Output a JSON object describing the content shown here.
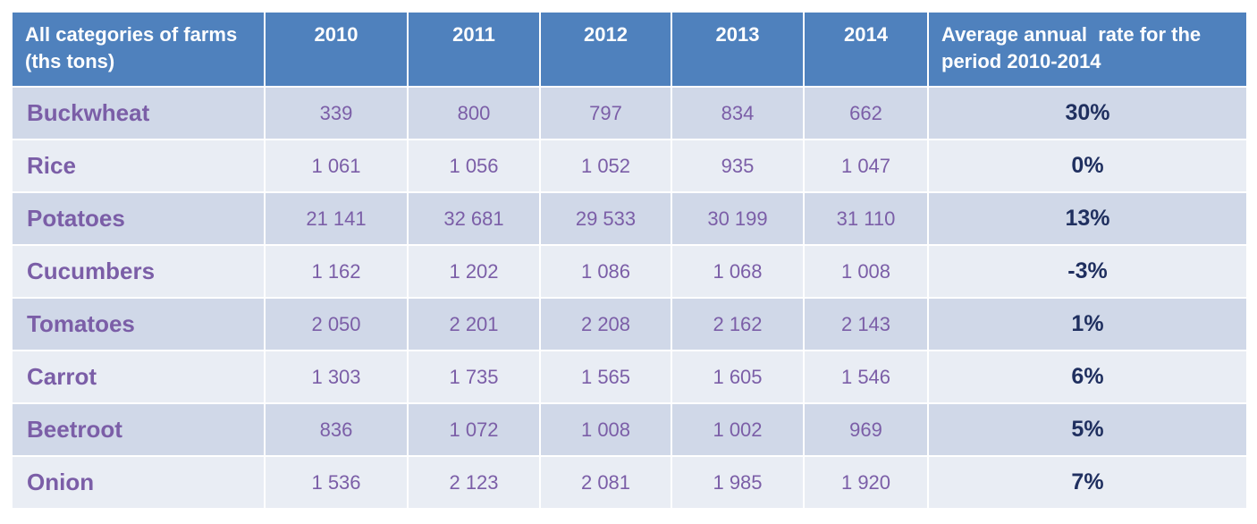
{
  "header": {
    "category_line1": "All categories of farms",
    "category_line2": "(ths tons)",
    "years": [
      "2010",
      "2011",
      "2012",
      "2013",
      "2014"
    ],
    "rate_line1": "Average annual  rate for the",
    "rate_line2": "period 2010-2014"
  },
  "rows": [
    {
      "name": "Buckwheat",
      "values": [
        "339",
        "800",
        "797",
        "834",
        "662"
      ],
      "rate": "30%"
    },
    {
      "name": "Rice",
      "values": [
        "1 061",
        "1 056",
        "1 052",
        "935",
        "1 047"
      ],
      "rate": "0%"
    },
    {
      "name": "Potatoes",
      "values": [
        "21 141",
        "32 681",
        "29 533",
        "30 199",
        "31 110"
      ],
      "rate": "13%"
    },
    {
      "name": "Cucumbers",
      "values": [
        "1 162",
        "1 202",
        "1 086",
        "1 068",
        "1 008"
      ],
      "rate": "-3%"
    },
    {
      "name": "Tomatoes",
      "values": [
        "2 050",
        "2 201",
        "2 208",
        "2 162",
        "2 143"
      ],
      "rate": "1%"
    },
    {
      "name": "Carrot",
      "values": [
        "1 303",
        "1 735",
        "1 565",
        "1 605",
        "1 546"
      ],
      "rate": "6%"
    },
    {
      "name": "Beetroot",
      "values": [
        "836",
        "1 072",
        "1 008",
        "1 002",
        "969"
      ],
      "rate": "5%"
    },
    {
      "name": "Onion",
      "values": [
        "1 536",
        "2 123",
        "2 081",
        "1 985",
        "1 920"
      ],
      "rate": "7%"
    }
  ],
  "colors": {
    "header_bg": "#4f81bd",
    "row_dark": "#d0d8e8",
    "row_light": "#e9edf4",
    "label_text": "#7b5ea7",
    "rate_text": "#1f2f5f"
  }
}
